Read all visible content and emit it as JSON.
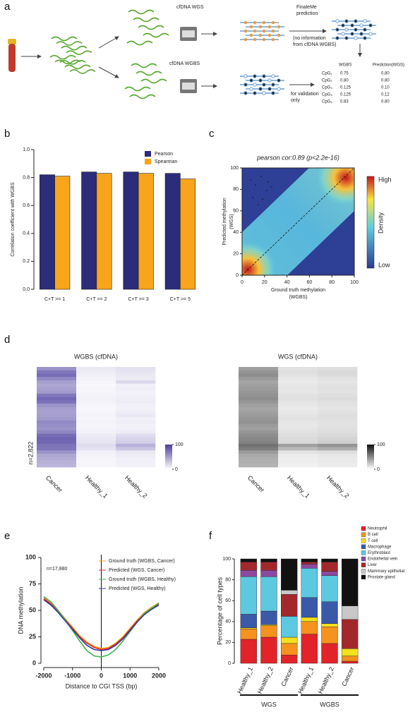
{
  "panel_labels": [
    "a",
    "b",
    "c",
    "d",
    "e",
    "f"
  ],
  "schematic": {
    "wgs_label": "cfDNA WGS",
    "wgbs_label": "cfDNA WGBS",
    "prediction_label": [
      "FinaleMe",
      "prediction"
    ],
    "no_info_note": [
      "(no information",
      "from cfDNA WGBS)"
    ],
    "validation_note": [
      "for validation",
      "only"
    ],
    "table": {
      "header": [
        "WGBS",
        "Prediction(WGS)"
      ],
      "rows": [
        [
          "CpG₁",
          "0.75",
          "0.80"
        ],
        [
          "CpG₂",
          "0.80",
          "0.80"
        ],
        [
          "CpG₃",
          "0.125",
          "0.10"
        ],
        [
          "CpG₄",
          "0.125",
          "0.12"
        ],
        [
          "CpG₅",
          "0.83",
          "0.80"
        ]
      ]
    }
  },
  "chart_data": [
    {
      "type": "bar",
      "ylabel": "Correlation coefficient with WGBS",
      "categories": [
        "C+T >= 1",
        "C+T >= 2",
        "C+T >= 3",
        "C+T >= 5"
      ],
      "series": [
        {
          "name": "Pearson",
          "color": "#2b2c7a",
          "values": [
            0.82,
            0.84,
            0.84,
            0.83
          ]
        },
        {
          "name": "Spearman",
          "color": "#f8a51b",
          "values": [
            0.81,
            0.83,
            0.83,
            0.79
          ]
        }
      ],
      "ylim": [
        0,
        1
      ],
      "yticks": [
        {
          "value": 0,
          "label": "0.0"
        },
        {
          "value": 0.2,
          "label": "0.2"
        },
        {
          "value": 0.4,
          "label": "0.4"
        },
        {
          "value": 0.6,
          "label": "0.6"
        },
        {
          "value": 0.8,
          "label": "0.8"
        },
        {
          "value": 1,
          "label": "1.0"
        }
      ],
      "legend": "upper right"
    },
    {
      "type": "density",
      "title": "pearson cor:0.89 (p<2.2e-16)",
      "xlabel": [
        "Ground truth methylation",
        "(WGBS)"
      ],
      "ylabel": [
        "Predicted methylation",
        "(WGS)"
      ],
      "xlim": [
        0,
        100
      ],
      "ylim": [
        0,
        100
      ],
      "xticks": [
        0,
        20,
        40,
        60,
        80,
        100
      ],
      "yticks": [
        0,
        20,
        40,
        60,
        80,
        100
      ],
      "colorbar_title": "Density",
      "colorbar_high": "High",
      "colorbar_low": "Low"
    },
    {
      "type": "heatmap",
      "title": "WGBS (cfDNA)",
      "ylabel": "n=2,822",
      "categories": [
        "Cancer",
        "Healthy_1",
        "Healthy_2"
      ],
      "color_low": "#ffffff",
      "color_high": "#4a3c9e",
      "zlim": [
        0,
        100
      ],
      "colorbar_ticks": [
        100,
        0
      ],
      "values": [
        [
          55,
          12,
          15
        ],
        [
          70,
          10,
          14
        ],
        [
          75,
          8,
          12
        ],
        [
          60,
          6,
          10
        ],
        [
          50,
          5,
          20
        ],
        [
          45,
          4,
          8
        ],
        [
          48,
          5,
          9
        ],
        [
          52,
          5,
          7
        ],
        [
          70,
          6,
          8
        ],
        [
          78,
          7,
          9
        ],
        [
          72,
          6,
          10
        ],
        [
          55,
          5,
          8
        ],
        [
          50,
          4,
          7
        ],
        [
          48,
          5,
          9
        ],
        [
          50,
          6,
          12
        ],
        [
          52,
          5,
          8
        ],
        [
          60,
          6,
          9
        ],
        [
          58,
          5,
          7
        ],
        [
          55,
          6,
          8
        ],
        [
          62,
          7,
          10
        ],
        [
          75,
          10,
          18
        ],
        [
          80,
          12,
          22
        ],
        [
          78,
          14,
          25
        ],
        [
          72,
          18,
          40
        ],
        [
          70,
          15,
          30
        ],
        [
          55,
          8,
          12
        ],
        [
          45,
          6,
          10
        ],
        [
          42,
          5,
          8
        ],
        [
          40,
          5,
          8
        ],
        [
          38,
          5,
          7
        ]
      ]
    },
    {
      "type": "heatmap",
      "title": "WGS (cfDNA)",
      "categories": [
        "Cancer",
        "Healthy_1",
        "Healthy_2"
      ],
      "color_low": "#ffffff",
      "color_high": "#111111",
      "zlim": [
        0,
        100
      ],
      "colorbar_ticks": [
        100,
        0
      ],
      "values": [
        [
          40,
          12,
          14
        ],
        [
          45,
          14,
          16
        ],
        [
          48,
          12,
          15
        ],
        [
          42,
          10,
          12
        ],
        [
          38,
          9,
          11
        ],
        [
          40,
          10,
          12
        ],
        [
          42,
          11,
          13
        ],
        [
          44,
          10,
          12
        ],
        [
          46,
          12,
          14
        ],
        [
          48,
          13,
          15
        ],
        [
          44,
          11,
          13
        ],
        [
          40,
          10,
          12
        ],
        [
          38,
          9,
          11
        ],
        [
          40,
          10,
          12
        ],
        [
          42,
          11,
          14
        ],
        [
          44,
          12,
          13
        ],
        [
          46,
          11,
          12
        ],
        [
          42,
          10,
          12
        ],
        [
          40,
          11,
          13
        ],
        [
          44,
          12,
          14
        ],
        [
          48,
          14,
          16
        ],
        [
          50,
          15,
          18
        ],
        [
          52,
          16,
          20
        ],
        [
          60,
          40,
          45
        ],
        [
          55,
          30,
          35
        ],
        [
          42,
          12,
          14
        ],
        [
          36,
          8,
          10
        ],
        [
          34,
          7,
          9
        ],
        [
          33,
          7,
          9
        ],
        [
          32,
          6,
          8
        ]
      ]
    },
    {
      "type": "line",
      "xlabel": "Distance to CGI TSS (bp)",
      "ylabel": "DNA methylation",
      "annotation": "n=17,880",
      "x": [
        -2000,
        -1750,
        -1500,
        -1250,
        -1000,
        -750,
        -500,
        -250,
        0,
        250,
        500,
        750,
        1000,
        1250,
        1500,
        1750,
        2000
      ],
      "series": [
        {
          "name": "Ground truth (WGBS, Cancer)",
          "color": "#f7a21b",
          "values": [
            62,
            57,
            50,
            42,
            34,
            26,
            20,
            16,
            14,
            15,
            19,
            25,
            33,
            41,
            48,
            53,
            57
          ]
        },
        {
          "name": "Predicted (WGS, Cancer)",
          "color": "#e8262b",
          "values": [
            61,
            56,
            49,
            41,
            33,
            25,
            19,
            15,
            13,
            14,
            18,
            24,
            32,
            40,
            47,
            52,
            56
          ]
        },
        {
          "name": "Ground truth (WGBS, Healthy)",
          "color": "#45b34a",
          "values": [
            63,
            58,
            50,
            41,
            31,
            21,
            12,
            7,
            6,
            8,
            13,
            21,
            30,
            39,
            47,
            52,
            57
          ]
        },
        {
          "name": "Predicted (WGS, Healthy)",
          "color": "#2f3b9a",
          "values": [
            60,
            55,
            48,
            40,
            32,
            24,
            17,
            13,
            12,
            13,
            17,
            23,
            31,
            39,
            46,
            51,
            55
          ]
        }
      ],
      "xlim": [
        -2000,
        2000
      ],
      "ylim": [
        0,
        100
      ],
      "xticks": [
        -2000,
        -1000,
        0,
        1000,
        2000
      ],
      "yticks": [
        0,
        25,
        50,
        75,
        100
      ],
      "vline": 0,
      "legend": "upper right"
    },
    {
      "type": "stacked_bar",
      "ylabel": "Percentage of cell types",
      "groups": [
        {
          "name": "WGS",
          "categories": [
            "Healthy_1",
            "Healthy_2",
            "Cancer"
          ]
        },
        {
          "name": "WGBS",
          "categories": [
            "Healthy_1",
            "Healthy_2",
            "Cancer"
          ]
        }
      ],
      "series": [
        {
          "name": "Neutrophil",
          "color": "#e2232a",
          "values": [
            23,
            25,
            8,
            28,
            19,
            2
          ]
        },
        {
          "name": "B cell",
          "color": "#f6921e",
          "values": [
            10,
            11,
            11,
            12,
            16,
            5
          ]
        },
        {
          "name": "T cell",
          "color": "#f4e01c",
          "values": [
            1,
            1,
            6,
            4,
            3,
            7
          ]
        },
        {
          "name": "Macrophage",
          "color": "#3a5aa8",
          "values": [
            13,
            13,
            0,
            19,
            21,
            0
          ]
        },
        {
          "name": "Erythroblast",
          "color": "#5cc9e0",
          "values": [
            36,
            33,
            20,
            28,
            25,
            0
          ]
        },
        {
          "name": "Endothelial vein",
          "color": "#8b4a9f",
          "values": [
            6,
            6,
            0,
            4,
            4,
            0
          ]
        },
        {
          "name": "Liver",
          "color": "#a3282c",
          "values": [
            8,
            8,
            21,
            2,
            9,
            28
          ]
        },
        {
          "name": "Mammary epithelial",
          "color": "#c8c8c8",
          "values": [
            0,
            0,
            4,
            0,
            0,
            13
          ]
        },
        {
          "name": "Prostate gland",
          "color": "#111111",
          "values": [
            3,
            3,
            30,
            3,
            3,
            45
          ]
        }
      ],
      "ylim": [
        0,
        100
      ],
      "yticks": [
        0,
        20,
        40,
        60,
        80,
        100
      ],
      "legend": "upper right"
    }
  ]
}
